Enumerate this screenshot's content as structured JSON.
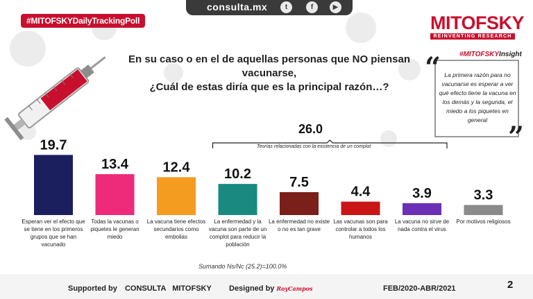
{
  "header": {
    "url": "consulta.mx",
    "social": [
      {
        "icon": "twitter-icon",
        "glyph": "t"
      },
      {
        "icon": "facebook-icon",
        "glyph": "f"
      },
      {
        "icon": "youtube-icon",
        "glyph": "▶"
      }
    ],
    "hashtag": "#MITOFSKYDailyTrackingPoll",
    "brand": "MITOFSKY",
    "tagline": "REINVENTING RESEARCH",
    "insight_hash": "#MITOFSKY",
    "insight_word": "Insight"
  },
  "colors": {
    "brand_red": "#c8102e",
    "dark": "#3a3a3a"
  },
  "question": {
    "line1": "En su caso o en el de aquellas personas que NO piensan vacunarse,",
    "line2": "¿Cuál de estas diría que es la principal razón…?"
  },
  "quote": "La primera razón para no vacunarse es esperar a ver qué efecto tiene la vacuna en los demás y la segunda, el miedo a los piquetes en general",
  "chart_data": {
    "type": "bar",
    "title": "En su caso o en el de aquellas personas que NO piensan vacunarse, ¿Cuál de estas diría que es la principal razón…?",
    "xlabel": "",
    "ylabel": "",
    "ylim": [
      0,
      20
    ],
    "value_labels": [
      "19.7",
      "13.4",
      "12.4",
      "10.2",
      "7.5",
      "4.4",
      "3.9",
      "3.3"
    ],
    "categories": [
      "Esperan ver el efecto que se tiene en los primeros grupos que se han vacunado",
      "Todas la vacunas o piquetes le generan miedo",
      "La vacuna tiene efectos secundarios como embolias",
      "La enfermedad y la vacuna son parte de un complot para reducir la población",
      "La enfermedad no existe o no es tan grave",
      "Las vacunas son para controlar a todos los humanos",
      "La vacuna no sirve de nada contra el virus",
      "Por motivos religiosos"
    ],
    "values": [
      19.7,
      13.4,
      12.4,
      10.2,
      7.5,
      4.4,
      3.9,
      3.3
    ],
    "colors": [
      "#1b1f5e",
      "#ee2a7b",
      "#f39c1f",
      "#1a8a80",
      "#7a1f1a",
      "#c91515",
      "#6a2fb5",
      "#8a8a8a"
    ],
    "group": {
      "value": "26.0",
      "label": "Teorías relacionadas con la existencia de un complot",
      "members": [
        3,
        4,
        5,
        6
      ]
    }
  },
  "footnote": "Sumando Ns/Nc (25.2)=100.0%",
  "footer": {
    "supported_prefix": "Supported by",
    "supported_name": "CONSULTA   MITOFSKY",
    "designed_prefix": "Designed by",
    "designer": "RoyCampos",
    "date_range": "FEB/2020-ABR/2021",
    "page": "2"
  }
}
